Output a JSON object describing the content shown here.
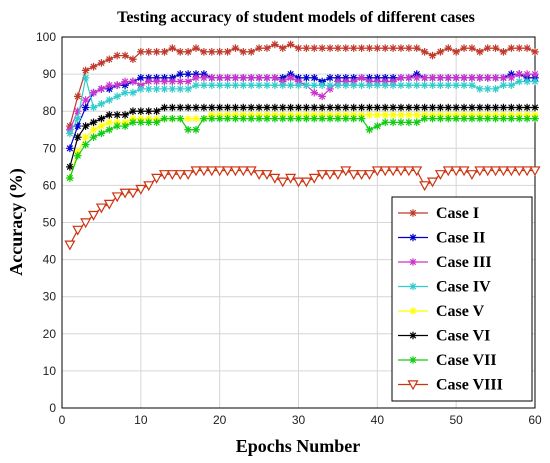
{
  "chart_data": {
    "type": "line",
    "title": "Testing accuracy of student models of different cases",
    "xlabel": "Epochs Number",
    "ylabel": "Accuracy (%)",
    "xlim": [
      0,
      60
    ],
    "ylim": [
      0,
      100
    ],
    "xticks": [
      0,
      10,
      20,
      30,
      40,
      50,
      60
    ],
    "yticks": [
      0,
      10,
      20,
      30,
      40,
      50,
      60,
      70,
      80,
      90,
      100
    ],
    "grid": true,
    "legend_position": "bottom-right",
    "x": [
      1,
      2,
      3,
      4,
      5,
      6,
      7,
      8,
      9,
      10,
      11,
      12,
      13,
      14,
      15,
      16,
      17,
      18,
      19,
      20,
      21,
      22,
      23,
      24,
      25,
      26,
      27,
      28,
      29,
      30,
      31,
      32,
      33,
      34,
      35,
      36,
      37,
      38,
      39,
      40,
      41,
      42,
      43,
      44,
      45,
      46,
      47,
      48,
      49,
      50,
      51,
      52,
      53,
      54,
      55,
      56,
      57,
      58,
      59,
      60
    ],
    "series": [
      {
        "name": "Case I",
        "color": "#c0392b",
        "marker": "star",
        "values": [
          76,
          84,
          91,
          92,
          93,
          94,
          95,
          95,
          94,
          96,
          96,
          96,
          96,
          97,
          96,
          96,
          97,
          96,
          96,
          96,
          96,
          97,
          96,
          96,
          97,
          97,
          98,
          97,
          98,
          97,
          97,
          97,
          97,
          97,
          97,
          97,
          97,
          97,
          97,
          97,
          97,
          97,
          97,
          97,
          97,
          96,
          95,
          96,
          97,
          96,
          97,
          97,
          96,
          97,
          97,
          96,
          97,
          97,
          97,
          96
        ]
      },
      {
        "name": "Case II",
        "color": "#0000cc",
        "marker": "star",
        "values": [
          70,
          76,
          81,
          85,
          86,
          86,
          87,
          87,
          88,
          89,
          89,
          89,
          89,
          89,
          90,
          90,
          90,
          90,
          89,
          89,
          89,
          89,
          89,
          89,
          89,
          89,
          89,
          89,
          90,
          89,
          89,
          89,
          88,
          89,
          89,
          89,
          89,
          89,
          89,
          89,
          89,
          89,
          89,
          89,
          90,
          89,
          89,
          89,
          89,
          89,
          89,
          89,
          89,
          89,
          89,
          89,
          90,
          90,
          89,
          89
        ]
      },
      {
        "name": "Case III",
        "color": "#cc33cc",
        "marker": "star",
        "values": [
          75,
          80,
          83,
          85,
          86,
          87,
          87,
          88,
          88,
          87,
          88,
          88,
          88,
          88,
          88,
          88,
          89,
          89,
          89,
          89,
          89,
          89,
          89,
          89,
          89,
          89,
          89,
          88,
          89,
          88,
          87,
          85,
          84,
          86,
          88,
          88,
          88,
          89,
          88,
          88,
          88,
          88,
          89,
          89,
          89,
          89,
          89,
          89,
          89,
          89,
          89,
          89,
          89,
          89,
          89,
          89,
          89,
          90,
          90,
          90
        ]
      },
      {
        "name": "Case IV",
        "color": "#33cccc",
        "marker": "star",
        "values": [
          74,
          78,
          89,
          81,
          82,
          83,
          84,
          85,
          85,
          86,
          86,
          86,
          86,
          86,
          86,
          86,
          87,
          87,
          87,
          87,
          87,
          87,
          87,
          87,
          87,
          87,
          87,
          87,
          87,
          87,
          87,
          87,
          87,
          87,
          87,
          87,
          87,
          87,
          87,
          87,
          87,
          87,
          87,
          87,
          87,
          87,
          87,
          87,
          87,
          87,
          87,
          87,
          86,
          86,
          86,
          87,
          87,
          88,
          88,
          88
        ]
      },
      {
        "name": "Case V",
        "color": "#ffff00",
        "marker": "star",
        "values": [
          62,
          69,
          73,
          75,
          76,
          77,
          77,
          77,
          78,
          78,
          78,
          78,
          78,
          78,
          78,
          78,
          78,
          78,
          79,
          79,
          79,
          79,
          79,
          79,
          79,
          79,
          79,
          79,
          79,
          79,
          79,
          79,
          79,
          79,
          79,
          79,
          79,
          79,
          79,
          79,
          79,
          79,
          79,
          79,
          79,
          79,
          79,
          79,
          79,
          79,
          79,
          79,
          79,
          79,
          79,
          79,
          79,
          79,
          79,
          79
        ]
      },
      {
        "name": "Case VI",
        "color": "#000000",
        "marker": "star",
        "values": [
          65,
          73,
          76,
          77,
          78,
          79,
          79,
          79,
          80,
          80,
          80,
          80,
          81,
          81,
          81,
          81,
          81,
          81,
          81,
          81,
          81,
          81,
          81,
          81,
          81,
          81,
          81,
          81,
          81,
          81,
          81,
          81,
          81,
          81,
          81,
          81,
          81,
          81,
          81,
          81,
          81,
          81,
          81,
          81,
          81,
          81,
          81,
          81,
          81,
          81,
          81,
          81,
          81,
          81,
          81,
          81,
          81,
          81,
          81,
          81
        ]
      },
      {
        "name": "Case VII",
        "color": "#11cc11",
        "marker": "star",
        "values": [
          62,
          68,
          71,
          73,
          74,
          75,
          76,
          76,
          77,
          77,
          77,
          77,
          78,
          78,
          78,
          75,
          75,
          78,
          78,
          78,
          78,
          78,
          78,
          78,
          78,
          78,
          78,
          78,
          78,
          78,
          78,
          78,
          78,
          78,
          78,
          78,
          78,
          78,
          75,
          76,
          77,
          77,
          77,
          77,
          77,
          78,
          78,
          78,
          78,
          78,
          78,
          78,
          78,
          78,
          78,
          78,
          78,
          78,
          78,
          78
        ]
      },
      {
        "name": "Case VIII",
        "color": "#cc3311",
        "marker": "triangle-down",
        "values": [
          44,
          48,
          50,
          52,
          54,
          55,
          57,
          58,
          58,
          59,
          60,
          62,
          63,
          63,
          63,
          63,
          64,
          64,
          64,
          64,
          64,
          64,
          64,
          64,
          63,
          63,
          62,
          61,
          62,
          61,
          61,
          62,
          63,
          63,
          63,
          64,
          63,
          63,
          63,
          64,
          64,
          64,
          64,
          64,
          64,
          60,
          61,
          63,
          64,
          64,
          64,
          63,
          64,
          64,
          64,
          64,
          64,
          64,
          64,
          64
        ]
      }
    ]
  }
}
